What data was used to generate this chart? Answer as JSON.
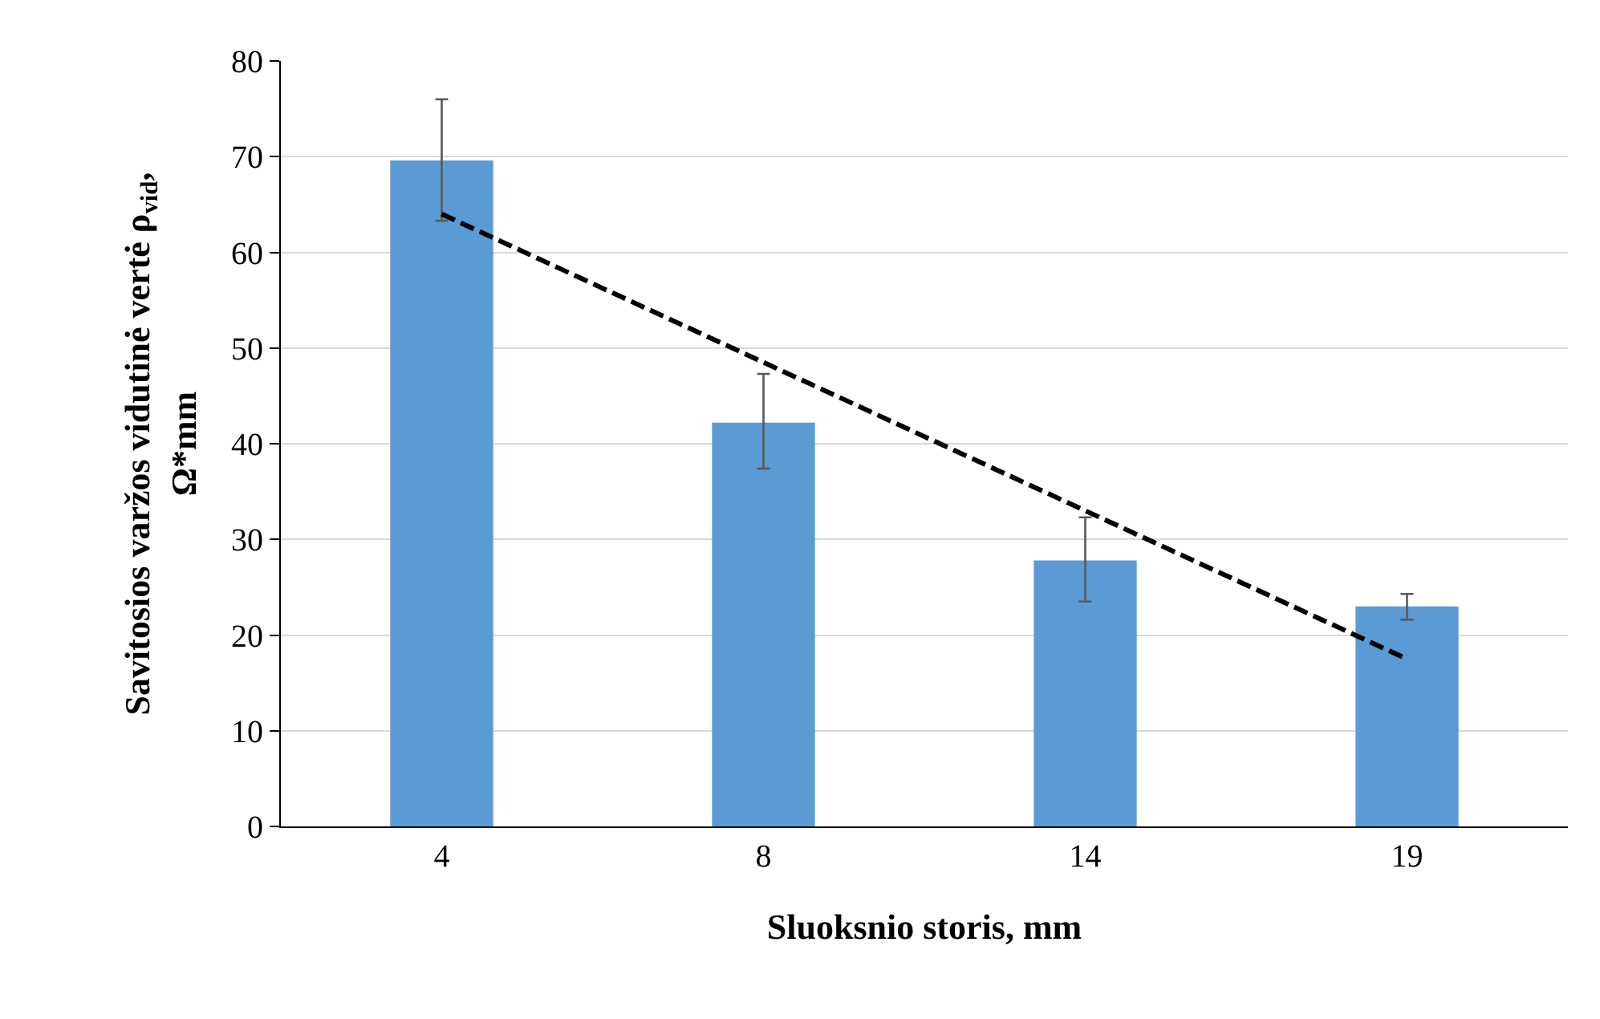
{
  "chart_data": {
    "type": "bar",
    "xlabel": "Sluoksnio storis, mm",
    "ylabel": "Savitosios varžos vidutinė vertė ρ$_{vid}$,\nΩ*mm",
    "categories": [
      "4",
      "8",
      "14",
      "19"
    ],
    "series": [
      {
        "color": "#5b9bd5",
        "values": [
          69.6,
          42.2,
          27.8,
          23.0
        ],
        "errors": [
          [
            63.3,
            76.0
          ],
          [
            37.4,
            47.3
          ],
          [
            23.5,
            32.3
          ],
          [
            21.6,
            24.3
          ]
        ]
      },
      {
        "type": "line",
        "color": "#000000",
        "line_style": "dashed",
        "marker": "none",
        "x": [
          "4",
          "19"
        ],
        "values": [
          64,
          17.5
        ]
      }
    ],
    "ylim": [
      0,
      80
    ],
    "yticks": [
      0,
      10,
      20,
      30,
      40,
      50,
      60,
      70,
      80
    ],
    "grid": "y"
  }
}
